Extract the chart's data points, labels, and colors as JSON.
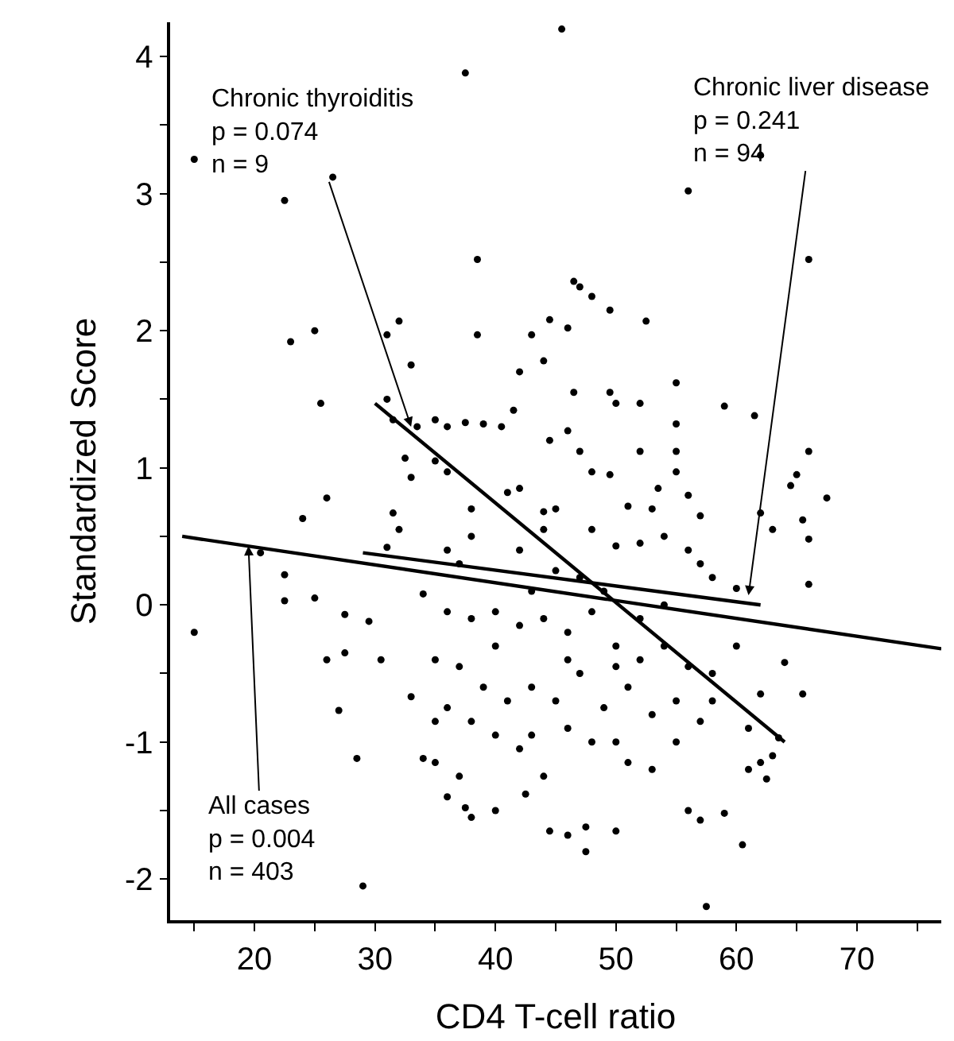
{
  "chart_data": {
    "type": "scatter",
    "xlabel": "CD4 T-cell ratio",
    "ylabel": "Standardized Score",
    "xlim": [
      13,
      77
    ],
    "ylim": [
      -2.3,
      4.25
    ],
    "xticks": [
      {
        "value": 15,
        "label": null
      },
      20,
      {
        "value": 25,
        "label": null
      },
      30,
      {
        "value": 35,
        "label": null
      },
      40,
      {
        "value": 45,
        "label": null
      },
      50,
      {
        "value": 55,
        "label": null
      },
      60,
      {
        "value": 65,
        "label": null
      },
      70,
      {
        "value": 75,
        "label": null
      }
    ],
    "yticks": [
      -2,
      {
        "value": -1.5,
        "label": null
      },
      -1,
      {
        "value": -0.5,
        "label": null
      },
      0,
      {
        "value": 0.5,
        "label": null
      },
      1,
      {
        "value": 1.5,
        "label": null
      },
      2,
      {
        "value": 2.5,
        "label": null
      },
      3,
      {
        "value": 3.5,
        "label": null
      },
      4
    ],
    "series": [
      {
        "marker": "circle",
        "color": "#000000",
        "x": [
          15,
          22.5,
          26.5,
          37.5,
          45.5,
          62,
          56,
          38.5,
          66,
          23,
          25,
          31,
          32,
          38.5,
          25.5,
          26,
          24,
          20.5,
          15,
          22.5,
          22.5,
          25,
          26,
          27.5,
          27,
          27.5,
          28.5,
          29,
          29.5,
          30.5,
          31,
          31.5,
          32,
          33,
          34,
          35,
          35,
          36,
          37,
          37.5,
          38,
          40,
          42.5,
          44.5,
          46,
          47.5,
          47.5,
          50,
          56,
          57,
          57.5,
          59,
          60.5,
          61,
          62,
          62.5,
          63,
          63.5,
          64,
          65.5,
          66,
          65.5,
          66,
          67.5,
          66,
          65,
          64.5,
          63,
          62,
          61.5,
          59,
          55,
          52.5,
          46.5,
          47,
          48,
          49.5,
          44.5,
          43,
          44,
          42,
          46,
          46.5,
          49.5,
          50,
          52,
          55,
          55,
          55,
          56,
          57,
          33,
          31,
          31.5,
          33.5,
          35,
          36,
          37.5,
          39,
          40.5,
          41.5,
          44.5,
          46,
          47,
          48,
          49.5,
          52,
          53.5,
          36,
          35,
          32.5,
          33,
          38,
          41,
          42,
          44,
          45,
          48,
          50,
          52,
          54,
          51,
          53,
          57,
          58,
          60,
          56,
          42,
          44,
          38,
          36,
          37,
          34,
          36,
          38,
          40,
          42,
          44,
          46,
          48,
          50,
          52,
          54,
          56,
          58,
          60,
          62,
          61,
          58,
          55,
          53,
          51,
          50,
          48,
          46,
          44,
          42,
          40,
          38,
          36,
          35,
          37,
          39,
          41,
          43,
          45,
          47,
          49,
          51,
          53,
          55,
          57,
          43,
          40,
          46,
          50,
          52,
          54,
          47,
          45,
          43,
          49
        ],
        "values": [
          3.25,
          2.95,
          3.12,
          3.88,
          4.2,
          3.28,
          3.02,
          2.52,
          2.52,
          1.92,
          2.0,
          1.97,
          2.07,
          1.97,
          1.47,
          0.78,
          0.63,
          0.38,
          -0.2,
          0.03,
          0.22,
          0.05,
          -0.4,
          -0.35,
          -0.77,
          -0.07,
          -1.12,
          -2.05,
          -0.12,
          -0.4,
          0.42,
          0.67,
          0.55,
          -0.67,
          -1.12,
          -1.15,
          -0.85,
          -1.4,
          -1.25,
          -1.48,
          -1.55,
          -1.5,
          -1.38,
          -1.65,
          -1.68,
          -1.8,
          -1.62,
          -1.65,
          -1.5,
          -1.57,
          -2.2,
          -1.52,
          -1.75,
          -1.2,
          -1.15,
          -1.27,
          -1.1,
          -0.97,
          -0.42,
          -0.65,
          0.15,
          0.62,
          0.48,
          0.78,
          1.12,
          0.95,
          0.87,
          0.55,
          0.67,
          1.38,
          1.45,
          1.62,
          2.07,
          2.36,
          2.32,
          2.25,
          2.15,
          2.08,
          1.97,
          1.78,
          1.7,
          2.02,
          1.55,
          1.55,
          1.47,
          1.47,
          1.32,
          1.12,
          0.97,
          0.8,
          0.65,
          1.75,
          1.5,
          1.35,
          1.3,
          1.35,
          1.3,
          1.33,
          1.32,
          1.3,
          1.42,
          1.2,
          1.27,
          1.12,
          0.97,
          0.95,
          1.12,
          0.85,
          0.97,
          1.05,
          1.07,
          0.93,
          0.7,
          0.82,
          0.85,
          0.68,
          0.7,
          0.55,
          0.43,
          0.45,
          0.5,
          0.72,
          0.7,
          0.3,
          0.2,
          0.12,
          0.4,
          0.4,
          0.55,
          0.5,
          0.4,
          0.3,
          0.08,
          -0.05,
          -0.1,
          -0.05,
          -0.15,
          -0.1,
          -0.2,
          -0.05,
          -0.3,
          -0.4,
          -0.3,
          -0.45,
          -0.5,
          -0.3,
          -0.65,
          -0.9,
          -0.7,
          -1.0,
          -1.2,
          -1.15,
          -1.0,
          -1.0,
          -0.9,
          -1.25,
          -1.05,
          -0.95,
          -0.85,
          -0.75,
          -0.4,
          -0.45,
          -0.6,
          -0.7,
          -0.6,
          -0.7,
          -0.5,
          -0.75,
          -0.6,
          -0.8,
          -0.7,
          -0.85,
          -0.95,
          -0.3,
          -0.4,
          -0.45,
          -0.1,
          0.0,
          0.2,
          0.25,
          0.1,
          0.1
        ]
      },
      {
        "type": "line",
        "color": "#000000",
        "line_style": "solid",
        "x": [
          14,
          77
        ],
        "values": [
          0.5,
          -0.32
        ]
      },
      {
        "type": "line",
        "color": "#000000",
        "line_style": "solid",
        "x": [
          29,
          62
        ],
        "values": [
          0.38,
          0.0
        ]
      },
      {
        "type": "line",
        "color": "#000000",
        "line_style": "solid",
        "x": [
          30,
          64
        ],
        "values": [
          1.47,
          -1.0
        ]
      }
    ],
    "annotations": [
      {
        "text": "Chronic thyroiditis\np = 0.074\nn = 9",
        "x": 33,
        "y": 1.3
      },
      {
        "text": "Chronic liver disease\np = 0.241\nn = 94",
        "x": 61,
        "y": 0.07
      },
      {
        "text": "All cases\np = 0.004\nn = 403",
        "x": 19.5,
        "y": 0.43
      }
    ]
  }
}
